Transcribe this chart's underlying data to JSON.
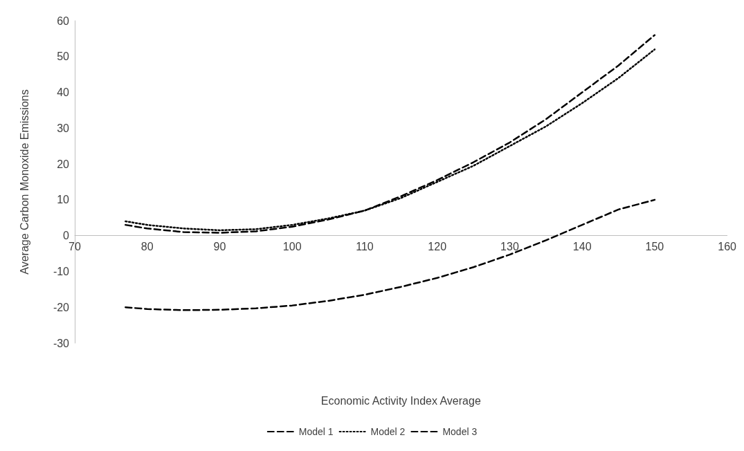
{
  "chart_data": {
    "type": "line",
    "xlabel": "Economic Activity Index Average",
    "ylabel": "Average Carbon Monoxide Emissions",
    "xlim": [
      70,
      160
    ],
    "xticks": [
      70,
      80,
      90,
      100,
      110,
      120,
      130,
      140,
      150,
      160
    ],
    "ylim": [
      -30,
      60
    ],
    "yticks": [
      -30,
      -20,
      -10,
      0,
      10,
      20,
      30,
      40,
      50,
      60
    ],
    "grid": false,
    "legend": "bottom",
    "marker": "none",
    "x": [
      77,
      80,
      85,
      90,
      95,
      100,
      105,
      110,
      115,
      120,
      125,
      130,
      135,
      140,
      145,
      150
    ],
    "series": [
      {
        "name": "Model 1",
        "color": "#000000",
        "line_style": "dashed",
        "values": [
          3,
          2,
          1,
          0.8,
          1.2,
          2.5,
          4.5,
          7,
          11,
          15.5,
          20.5,
          26,
          32.5,
          40,
          47.5,
          56
        ]
      },
      {
        "name": "Model 2",
        "color": "#000000",
        "line_style": "dotted",
        "values": [
          4,
          3,
          2,
          1.5,
          1.8,
          3,
          4.8,
          7,
          10.5,
          15,
          19.5,
          25,
          30.5,
          37,
          44,
          52
        ]
      },
      {
        "name": "Model 3",
        "color": "#000000",
        "line_style": "dashed",
        "values": [
          -20,
          -20.5,
          -20.8,
          -20.7,
          -20.3,
          -19.5,
          -18.2,
          -16.5,
          -14.3,
          -11.8,
          -8.8,
          -5.3,
          -1.3,
          3,
          7.3,
          10
        ]
      }
    ]
  }
}
